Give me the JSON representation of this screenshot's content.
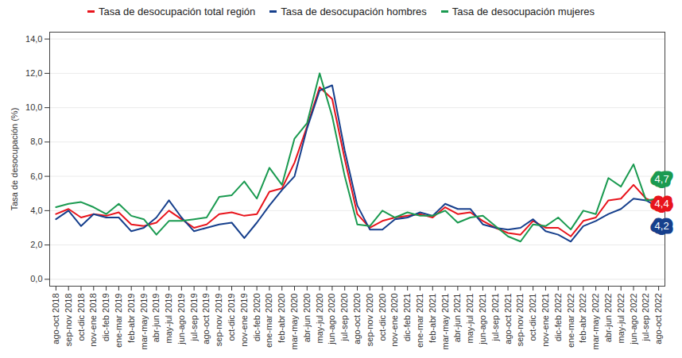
{
  "chart_data": {
    "type": "line",
    "ylabel": "Tasa de desocupación (%)",
    "categories": [
      "ago-oct 2018",
      "sep-nov 2018",
      "oct-dic 2018",
      "nov-ene 2018",
      "dic-feb 2019",
      "ene-mar 2019",
      "feb-abr 2019",
      "mar-may 2019",
      "abr-jun 2019",
      "may-jul 2019",
      "jun-ago 2019",
      "jul-sep 2019",
      "ago-oct 2019",
      "sep-nov 2019",
      "oct-dic 2019",
      "nov-ene 2019",
      "dic-feb 2020",
      "ene-mar 2020",
      "feb-abr 2020",
      "mar-may 2020",
      "abr-jun 2020",
      "may-jul 2020",
      "jun-ago 2020",
      "jul-sep 2020",
      "ago-oct 2020",
      "sep-nov 2020",
      "oct-dic 2020",
      "nov-ene 2020",
      "dic-feb 2021",
      "ene-mar 2021",
      "feb-abr 2021",
      "mar-may 2021",
      "abr-jun 2021",
      "may-jul 2021",
      "jun-ago 2021",
      "jul-sep 2021",
      "ago-oct 2021",
      "sep-nov 2021",
      "oct-dic 2021",
      "nov-ene 2021",
      "dic-feb 2022",
      "ene-mar 2022",
      "feb-abr 2022",
      "mar-may 2022",
      "abr-jun 2022",
      "may-jul 2022",
      "jun-ago 2022",
      "jul-sep 2022",
      "ago-oct 2022"
    ],
    "series": [
      {
        "name": "Tasa de desocupación total región",
        "color": "#e8141c",
        "values": [
          3.8,
          4.1,
          3.6,
          3.8,
          3.7,
          3.9,
          3.2,
          3.1,
          3.3,
          4.0,
          3.5,
          3.0,
          3.2,
          3.8,
          3.9,
          3.7,
          3.8,
          5.1,
          5.3,
          6.8,
          8.9,
          11.2,
          10.5,
          7.0,
          3.8,
          3.0,
          3.4,
          3.6,
          3.7,
          3.8,
          3.6,
          4.2,
          3.8,
          3.9,
          3.4,
          3.0,
          2.7,
          2.6,
          3.4,
          3.0,
          3.0,
          2.5,
          3.4,
          3.6,
          4.6,
          4.7,
          5.5,
          4.7,
          4.4
        ],
        "value_labels": [
          null,
          null,
          null,
          null,
          null,
          null,
          null,
          null,
          null,
          null,
          null,
          null,
          null,
          null,
          null,
          null,
          null,
          null,
          null,
          null,
          null,
          null,
          null,
          null,
          null,
          null,
          null,
          null,
          null,
          null,
          null,
          null,
          null,
          null,
          null,
          null,
          null,
          null,
          null,
          null,
          null,
          null,
          null,
          null,
          null,
          null,
          null,
          null,
          "4,4"
        ]
      },
      {
        "name": "Tasa de desocupación hombres",
        "color": "#163f8c",
        "values": [
          3.5,
          4.0,
          3.1,
          3.8,
          3.6,
          3.6,
          2.8,
          3.0,
          3.6,
          4.6,
          3.6,
          2.8,
          3.0,
          3.2,
          3.3,
          2.4,
          3.3,
          4.3,
          5.2,
          6.0,
          8.8,
          11.0,
          11.3,
          7.5,
          4.3,
          2.9,
          2.9,
          3.5,
          3.6,
          3.9,
          3.7,
          4.4,
          4.1,
          4.1,
          3.2,
          3.0,
          2.9,
          3.0,
          3.5,
          2.8,
          2.6,
          2.2,
          3.1,
          3.4,
          3.8,
          4.1,
          4.7,
          4.6,
          4.2
        ],
        "value_labels": [
          null,
          null,
          null,
          null,
          null,
          null,
          null,
          null,
          null,
          null,
          null,
          null,
          null,
          null,
          null,
          null,
          null,
          null,
          null,
          null,
          null,
          null,
          null,
          null,
          null,
          null,
          null,
          null,
          null,
          null,
          null,
          null,
          null,
          null,
          null,
          null,
          null,
          null,
          null,
          null,
          null,
          null,
          null,
          null,
          null,
          null,
          null,
          null,
          "4,2"
        ]
      },
      {
        "name": "Tasa de desocupación mujeres",
        "color": "#1a9a50",
        "values": [
          4.2,
          4.4,
          4.5,
          4.2,
          3.8,
          4.4,
          3.7,
          3.5,
          2.6,
          3.4,
          3.4,
          3.5,
          3.6,
          4.8,
          4.9,
          5.7,
          4.7,
          6.5,
          5.5,
          8.2,
          9.1,
          12.0,
          9.5,
          6.0,
          3.2,
          3.1,
          4.0,
          3.6,
          3.9,
          3.7,
          3.7,
          4.0,
          3.3,
          3.6,
          3.7,
          3.1,
          2.5,
          2.2,
          3.2,
          3.1,
          3.6,
          2.9,
          4.0,
          3.8,
          5.9,
          5.4,
          6.7,
          4.6,
          4.7
        ],
        "value_labels": [
          null,
          null,
          null,
          null,
          null,
          null,
          null,
          null,
          null,
          null,
          null,
          null,
          null,
          null,
          null,
          null,
          null,
          null,
          null,
          null,
          null,
          null,
          null,
          null,
          null,
          null,
          null,
          null,
          null,
          null,
          null,
          null,
          null,
          null,
          null,
          null,
          null,
          null,
          null,
          null,
          null,
          null,
          null,
          null,
          null,
          null,
          null,
          null,
          "4,7"
        ]
      }
    ],
    "ylim": [
      -0.4,
      14.4
    ],
    "yticks": [
      {
        "value": 0,
        "label": "0,0"
      },
      {
        "value": 2,
        "label": "2,0"
      },
      {
        "value": 4,
        "label": "4,0"
      },
      {
        "value": 6,
        "label": "6,0"
      },
      {
        "value": 8,
        "label": "8,0"
      },
      {
        "value": 10,
        "label": "10,0"
      },
      {
        "value": 12,
        "label": "12,0"
      },
      {
        "value": 14,
        "label": "14,0"
      }
    ],
    "grid": true,
    "legend": "top",
    "data_labels": true
  }
}
